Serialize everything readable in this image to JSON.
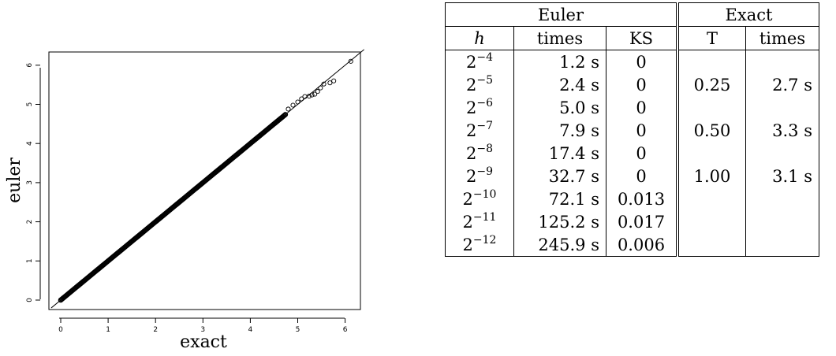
{
  "chart_data": {
    "type": "scatter",
    "xlabel": "exact",
    "ylabel": "euler",
    "xlim": [
      -0.2,
      6.4
    ],
    "ylim": [
      -0.2,
      6.4
    ],
    "x_ticks": [
      "0",
      "1",
      "2",
      "3",
      "4",
      "5",
      "6"
    ],
    "y_ticks": [
      "0",
      "1",
      "2",
      "3",
      "4",
      "5",
      "6"
    ],
    "reference_line": "y = x",
    "series": [
      {
        "marker": "open-circle",
        "color": "#000000",
        "dense_range": [
          0,
          4.75
        ],
        "tail_points": [
          [
            4.8,
            4.88
          ],
          [
            4.9,
            4.98
          ],
          [
            5.0,
            5.06
          ],
          [
            5.08,
            5.14
          ],
          [
            5.15,
            5.2
          ],
          [
            5.24,
            5.21
          ],
          [
            5.3,
            5.24
          ],
          [
            5.36,
            5.26
          ],
          [
            5.42,
            5.33
          ],
          [
            5.48,
            5.42
          ],
          [
            5.55,
            5.52
          ],
          [
            5.68,
            5.55
          ],
          [
            5.76,
            5.6
          ],
          [
            6.12,
            6.1
          ]
        ]
      }
    ]
  },
  "table": {
    "groups": [
      {
        "label": "Euler",
        "span": 3
      },
      {
        "label": "Exact",
        "span": 2
      }
    ],
    "columns": {
      "h": "h",
      "euler_times": "times",
      "ks": "KS",
      "T": "T",
      "exact_times": "times"
    },
    "rows": [
      {
        "h_base": "2",
        "h_exp": "−4",
        "euler_time": "1.2 s",
        "ks": "0",
        "T": "",
        "exact_time": ""
      },
      {
        "h_base": "2",
        "h_exp": "−5",
        "euler_time": "2.4 s",
        "ks": "0",
        "T": "0.25",
        "exact_time": "2.7 s"
      },
      {
        "h_base": "2",
        "h_exp": "−6",
        "euler_time": "5.0 s",
        "ks": "0",
        "T": "",
        "exact_time": ""
      },
      {
        "h_base": "2",
        "h_exp": "−7",
        "euler_time": "7.9 s",
        "ks": "0",
        "T": "0.50",
        "exact_time": "3.3 s"
      },
      {
        "h_base": "2",
        "h_exp": "−8",
        "euler_time": "17.4 s",
        "ks": "0",
        "T": "",
        "exact_time": ""
      },
      {
        "h_base": "2",
        "h_exp": "−9",
        "euler_time": "32.7 s",
        "ks": "0",
        "T": "1.00",
        "exact_time": "3.1 s"
      },
      {
        "h_base": "2",
        "h_exp": "−10",
        "euler_time": "72.1 s",
        "ks": "0.013",
        "T": "",
        "exact_time": ""
      },
      {
        "h_base": "2",
        "h_exp": "−11",
        "euler_time": "125.2 s",
        "ks": "0.017",
        "T": "",
        "exact_time": ""
      },
      {
        "h_base": "2",
        "h_exp": "−12",
        "euler_time": "245.9 s",
        "ks": "0.006",
        "T": "",
        "exact_time": ""
      }
    ]
  }
}
